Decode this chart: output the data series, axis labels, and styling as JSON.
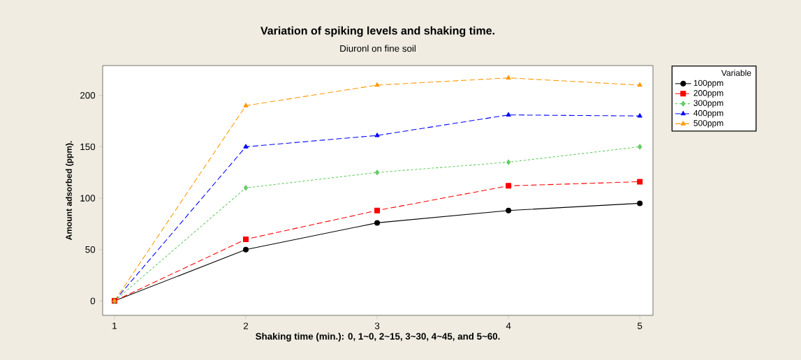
{
  "chart_data": {
    "type": "line",
    "title": "Variation of spiking levels and shaking time.",
    "subtitle": "Diuronl on fine soil",
    "xlabel": "Shaking time (min.): 0, 1~0, 2~15, 3~30, 4~45, and 5~60.",
    "ylabel": "Amount adsorbed (ppm).",
    "x": [
      1,
      2,
      3,
      4,
      5
    ],
    "xlim": [
      0.91,
      5.1
    ],
    "xticks": [
      1,
      2,
      3,
      4,
      5
    ],
    "ylim": [
      -14,
      229
    ],
    "yticks": [
      0,
      50,
      100,
      150,
      200
    ],
    "legend": "right",
    "legend_title": "Variable",
    "grid": false,
    "series": [
      {
        "name": "100ppm",
        "color": "#000000",
        "marker": "circle",
        "line_style": "solid",
        "values": [
          0,
          50,
          76,
          88,
          95
        ]
      },
      {
        "name": "200ppm",
        "color": "#ff0000",
        "marker": "square",
        "line_style": "dashed",
        "values": [
          0,
          60,
          88,
          112,
          116
        ]
      },
      {
        "name": "300ppm",
        "color": "#66cc66",
        "marker": "diamond",
        "line_style": "dotted",
        "values": [
          0,
          110,
          125,
          135,
          150
        ]
      },
      {
        "name": "400ppm",
        "color": "#0000ff",
        "marker": "triangle",
        "line_style": "dashed",
        "values": [
          0,
          150,
          161,
          181,
          180
        ]
      },
      {
        "name": "500ppm",
        "color": "#ff9900",
        "marker": "triangle",
        "line_style": "dashed",
        "values": [
          0,
          190,
          210,
          217,
          210
        ]
      }
    ]
  }
}
